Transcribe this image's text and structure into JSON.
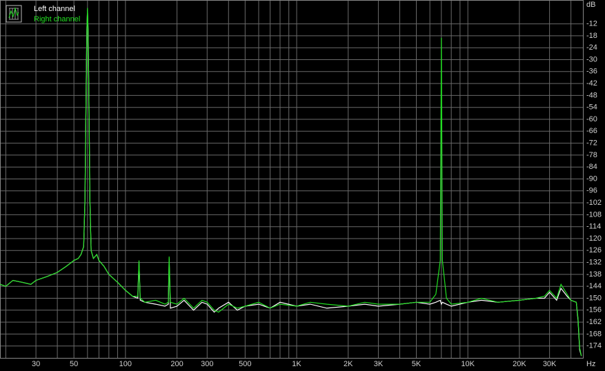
{
  "chart_data": {
    "type": "line",
    "y_unit": "dB",
    "x_unit": "Hz",
    "log_x": true,
    "grid": true,
    "legend": "top-left",
    "xlim": [
      18.5,
      47000
    ],
    "ylim": [
      -180,
      0
    ],
    "xticks": [
      30,
      50,
      100,
      200,
      300,
      500,
      {
        "value": 1000,
        "label": "1K"
      },
      {
        "value": 2000,
        "label": "2K"
      },
      {
        "value": 3000,
        "label": "3K"
      },
      {
        "value": 5000,
        "label": "5K"
      },
      {
        "value": 10000,
        "label": "10K"
      },
      {
        "value": 20000,
        "label": "20K"
      },
      {
        "value": 30000,
        "label": "30K"
      }
    ],
    "x_minor_grid": [
      20,
      40,
      60,
      70,
      80,
      90,
      400,
      600,
      700,
      800,
      900,
      4000,
      6000,
      7000,
      8000,
      9000,
      40000
    ],
    "yticks": [
      -12,
      -18,
      -24,
      -30,
      -36,
      -42,
      -48,
      -54,
      -60,
      -66,
      -72,
      -78,
      -84,
      -90,
      -96,
      -102,
      -108,
      -114,
      -120,
      -126,
      -132,
      -138,
      -144,
      -150,
      -156,
      -162,
      -168,
      -174
    ],
    "x": [
      18.5,
      20,
      22,
      25,
      28,
      30,
      35,
      40,
      45,
      50,
      53,
      55,
      57,
      58,
      59,
      59.5,
      60,
      60.5,
      61,
      62,
      63,
      65,
      68,
      70,
      75,
      80,
      90,
      100,
      110,
      118,
      120,
      122,
      130,
      150,
      170,
      178,
      180,
      183,
      200,
      220,
      250,
      280,
      300,
      330,
      350,
      400,
      450,
      500,
      600,
      700,
      800,
      1000,
      1200,
      1500,
      2000,
      2500,
      3000,
      4000,
      5000,
      6000,
      6500,
      6900,
      7000,
      7100,
      7500,
      8000,
      10000,
      12000,
      15000,
      20000,
      25000,
      28000,
      30000,
      33000,
      35000,
      38000,
      40000,
      43000,
      44000,
      45000,
      46000
    ],
    "series": [
      {
        "name": "Left channel",
        "color": "#ffffff",
        "values": [
          -143,
          -144,
          -141,
          -142,
          -143,
          -141,
          -139,
          -137,
          -134,
          -131,
          -130,
          -128,
          -124,
          -100,
          -40,
          -15,
          -5,
          -15,
          -40,
          -100,
          -126,
          -130,
          -128,
          -131,
          -134,
          -138,
          -142,
          -146,
          -149,
          -150,
          -132,
          -151,
          -152,
          -153,
          -154,
          -153,
          -130,
          -155,
          -154,
          -151,
          -156,
          -152,
          -153,
          -157,
          -155,
          -152,
          -156,
          -154,
          -153,
          -155,
          -152,
          -154,
          -153,
          -155,
          -154,
          -153,
          -154,
          -153,
          -152,
          -153,
          -152,
          -151,
          -153,
          -152,
          -153,
          -154,
          -152,
          -151,
          -152,
          -151,
          -150,
          -150,
          -147,
          -151,
          -145,
          -149,
          -151,
          -152,
          -161,
          -176,
          -179
        ]
      },
      {
        "name": "Right channel",
        "color": "#22e022",
        "values": [
          -143,
          -144,
          -141,
          -142,
          -143,
          -141,
          -139,
          -137,
          -134,
          -131,
          -130,
          -128,
          -124,
          -100,
          -40,
          -15,
          -4,
          -15,
          -40,
          -100,
          -126,
          -130,
          -128,
          -131,
          -134,
          -138,
          -142,
          -146,
          -149,
          -149,
          -131,
          -150,
          -152,
          -151,
          -153,
          -152,
          -129,
          -152,
          -153,
          -150,
          -155,
          -151,
          -152,
          -156,
          -157,
          -153,
          -155,
          -154,
          -152,
          -155,
          -153,
          -154,
          -152,
          -153,
          -154,
          -152,
          -153,
          -153,
          -152,
          -152,
          -148,
          -131,
          -19,
          -131,
          -150,
          -153,
          -152,
          -150,
          -152,
          -151,
          -150,
          -149,
          -146,
          -150,
          -143,
          -148,
          -151,
          -152,
          -160,
          -175,
          -179
        ]
      }
    ]
  }
}
